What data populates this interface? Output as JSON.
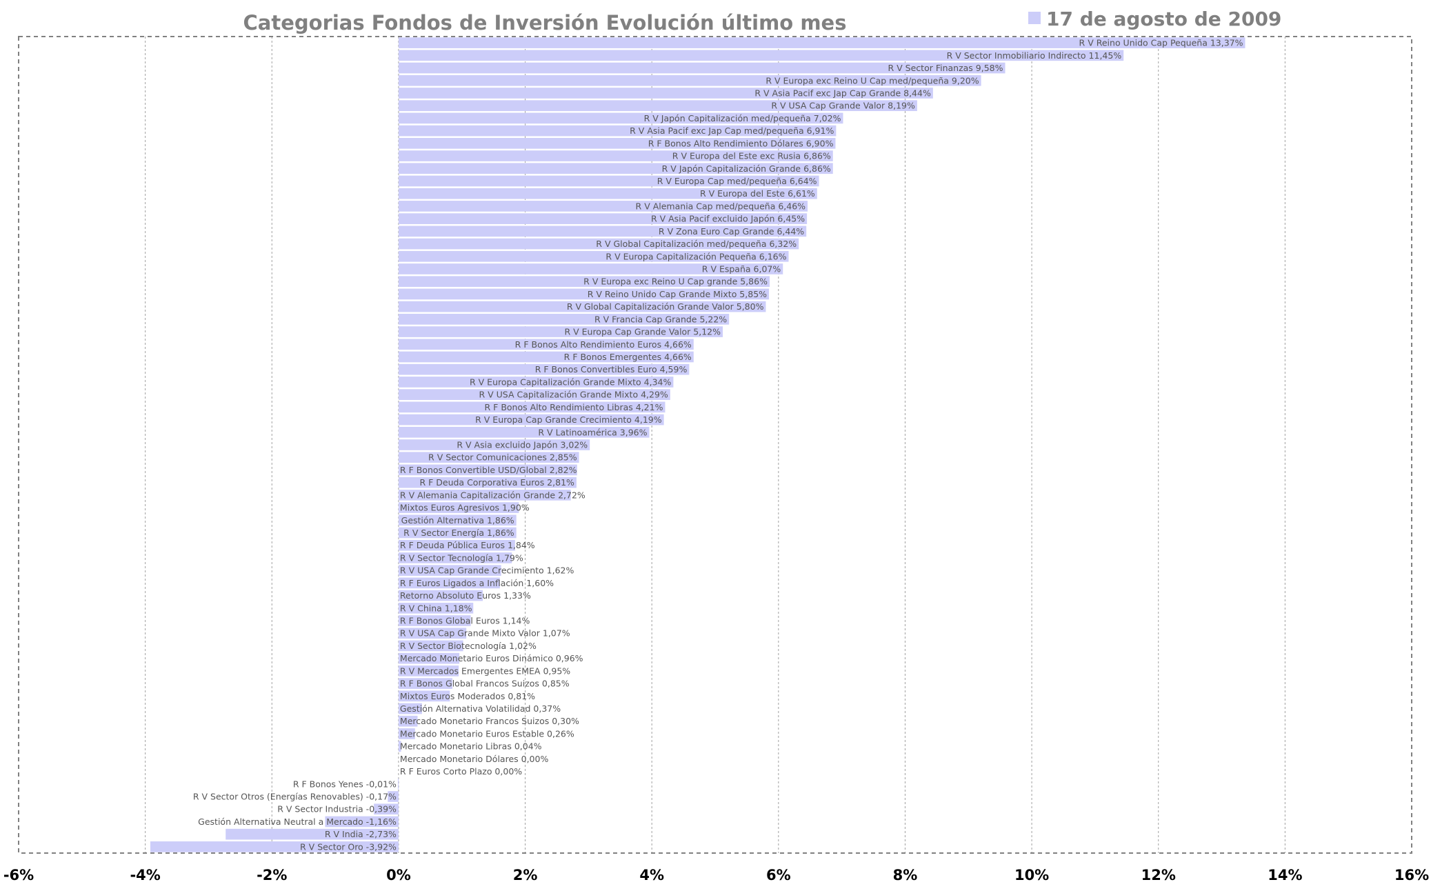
{
  "chart_data": {
    "type": "bar",
    "orientation": "horizontal",
    "title": "Categorias Fondos de Inversión Evolución último mes",
    "legend": [
      "17 de agosto de 2009"
    ],
    "legend_position": "top-right",
    "xlim": [
      -6,
      16
    ],
    "xticks": [
      "-6%",
      "-4%",
      "-2%",
      "0%",
      "2%",
      "4%",
      "6%",
      "8%",
      "10%",
      "12%",
      "14%",
      "16%"
    ],
    "grid": true,
    "colors": {
      "bar": "#cccdf9",
      "grid": "#a0a0a0",
      "title": "#808080"
    },
    "categories": [
      "R V Reino Unido Cap Pequeña 13,37%",
      "R V Sector Inmobiliario Indirecto 11,45%",
      "R V Sector Finanzas 9,58%",
      "R V Europa exc Reino U Cap med/pequeña 9,20%",
      "R V Asia Pacif exc Jap Cap Grande 8,44%",
      "R V USA Cap Grande Valor 8,19%",
      "R V Japón Capitalización med/pequeña 7,02%",
      "R V Asia Pacif exc Jap Cap med/pequeña 6,91%",
      "R F Bonos Alto Rendimiento Dólares 6,90%",
      "R V Europa del Este exc Rusia 6,86%",
      "R V Japón Capitalización Grande 6,86%",
      "R V Europa Cap med/pequeña 6,64%",
      "R V Europa del Este 6,61%",
      "R V Alemania Cap med/pequeña 6,46%",
      "R V Asia Pacif excluido Japón 6,45%",
      "R V Zona Euro Cap Grande 6,44%",
      "R V Global Capitalización med/pequeña 6,32%",
      "R V Europa Capitalización Pequeña 6,16%",
      "R V España 6,07%",
      "R V Europa exc Reino U Cap grande 5,86%",
      "R V Reino Unido Cap Grande Mixto 5,85%",
      "R V Global Capitalización Grande Valor 5,80%",
      "R V Francia Cap Grande 5,22%",
      "R V Europa Cap Grande Valor 5,12%",
      "R F Bonos Alto Rendimiento Euros 4,66%",
      "R F Bonos Emergentes 4,66%",
      "R F Bonos Convertibles Euro 4,59%",
      "R V Europa Capitalización Grande Mixto 4,34%",
      "R V USA Capitalización Grande Mixto 4,29%",
      "R F Bonos Alto Rendimiento Libras 4,21%",
      "R V Europa Cap Grande Crecimiento 4,19%",
      "R V Latinoamérica 3,96%",
      "R V Asia excluido Japón 3,02%",
      "R V Sector Comunicaciones 2,85%",
      "R F Bonos Convertible USD/Global 2,82%",
      "R F Deuda Corporativa Euros 2,81%",
      "R V Alemania Capitalización Grande 2,72%",
      "Mixtos Euros Agresivos 1,90%",
      "Gestión Alternativa 1,86%",
      "R V Sector Energía 1,86%",
      "R F Deuda Pública Euros 1,84%",
      "R V Sector Tecnología 1,79%",
      "R V USA Cap Grande Crecimiento 1,62%",
      "R F Euros Ligados a Inflación 1,60%",
      "Retorno Absoluto Euros 1,33%",
      "R V China 1,18%",
      "R F Bonos Global Euros 1,14%",
      "R V USA Cap Grande Mixto Valor 1,07%",
      "R V Sector Biotecnología 1,02%",
      "Mercado Monetario Euros Dinámico 0,96%",
      "R V Mercados Emergentes EMEA 0,95%",
      "R F Bonos Global Francos Suizos 0,85%",
      "Mixtos Euros Moderados 0,81%",
      "Gestión Alternativa Volatilidad 0,37%",
      "Mercado Monetario Francos Suizos 0,30%",
      "Mercado Monetario Euros Estable 0,26%",
      "Mercado Monetario Libras 0,04%",
      "Mercado Monetario Dólares 0,00%",
      "R F Euros Corto Plazo 0,00%",
      "R F Bonos Yenes -0,01%",
      "R V Sector Otros (Energías Renovables) -0,17%",
      "R V Sector Industria -0,39%",
      "Gestión Alternativa Neutral a Mercado -1,16%",
      "R V India -2,73%",
      "R V Sector Oro -3,92%"
    ],
    "values": [
      13.37,
      11.45,
      9.58,
      9.2,
      8.44,
      8.19,
      7.02,
      6.91,
      6.9,
      6.86,
      6.86,
      6.64,
      6.61,
      6.46,
      6.45,
      6.44,
      6.32,
      6.16,
      6.07,
      5.86,
      5.85,
      5.8,
      5.22,
      5.12,
      4.66,
      4.66,
      4.59,
      4.34,
      4.29,
      4.21,
      4.19,
      3.96,
      3.02,
      2.85,
      2.82,
      2.81,
      2.72,
      1.9,
      1.86,
      1.86,
      1.84,
      1.79,
      1.62,
      1.6,
      1.33,
      1.18,
      1.14,
      1.07,
      1.02,
      0.96,
      0.95,
      0.85,
      0.81,
      0.37,
      0.3,
      0.26,
      0.04,
      0.0,
      0.0,
      -0.01,
      -0.17,
      -0.39,
      -1.16,
      -2.73,
      -3.92
    ]
  }
}
